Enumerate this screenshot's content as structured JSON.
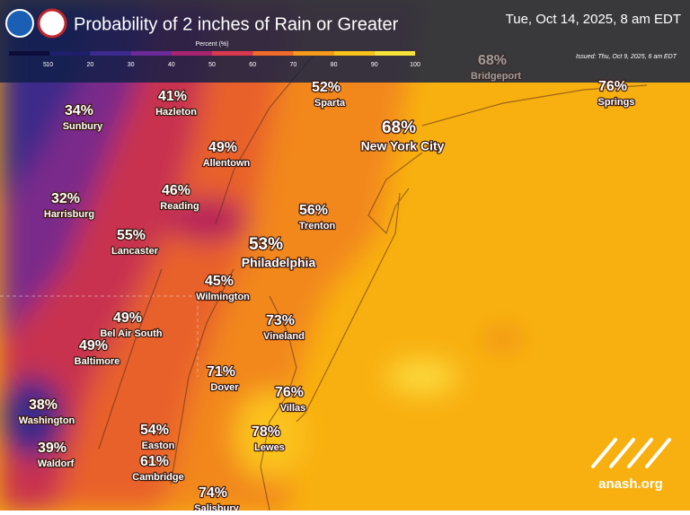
{
  "header": {
    "title": "Probability of 2 inches of Rain or Greater",
    "date": "Tue, Oct 14, 2025, 8 am EDT",
    "issued": "Issued: Thu, Oct 9, 2025, 6 am EDT"
  },
  "legend": {
    "title": "Percent (%)",
    "ticks": [
      5,
      10,
      20,
      30,
      40,
      50,
      60,
      70,
      80,
      90,
      100
    ],
    "colors": [
      "#0d0d3a",
      "#1d1f6b",
      "#3b2a8f",
      "#6a2a9a",
      "#a8246f",
      "#d9384f",
      "#f06a2a",
      "#f59a1a",
      "#fbc21a",
      "#fde23a"
    ]
  },
  "cities": [
    {
      "value": "68%",
      "name": "Bridgeport"
    },
    {
      "value": "41%",
      "name": "Hazleton"
    },
    {
      "value": "34%",
      "name": "Sunbury"
    },
    {
      "value": "52%",
      "name": "Sparta"
    },
    {
      "value": "68%",
      "name": "New York City"
    },
    {
      "value": "76%",
      "name": "Springs"
    },
    {
      "value": "49%",
      "name": "Allentown"
    },
    {
      "value": "46%",
      "name": "Reading"
    },
    {
      "value": "32%",
      "name": "Harrisburg"
    },
    {
      "value": "56%",
      "name": "Trenton"
    },
    {
      "value": "55%",
      "name": "Lancaster"
    },
    {
      "value": "53%",
      "name": "Philadelphia"
    },
    {
      "value": "45%",
      "name": "Wilmington"
    },
    {
      "value": "49%",
      "name": "Bel Air South"
    },
    {
      "value": "49%",
      "name": "Baltimore"
    },
    {
      "value": "73%",
      "name": "Vineland"
    },
    {
      "value": "71%",
      "name": "Dover"
    },
    {
      "value": "76%",
      "name": "Villas"
    },
    {
      "value": "38%",
      "name": "Washington"
    },
    {
      "value": "54%",
      "name": "Easton"
    },
    {
      "value": "78%",
      "name": "Lewes"
    },
    {
      "value": "39%",
      "name": "Waldorf"
    },
    {
      "value": "61%",
      "name": "Cambridge"
    },
    {
      "value": "74%",
      "name": "Salisbury"
    }
  ],
  "watermark": "anash.org"
}
